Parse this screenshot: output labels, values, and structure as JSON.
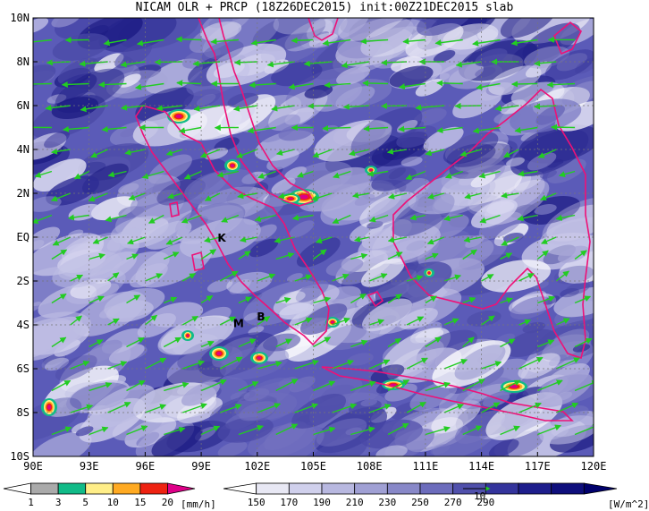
{
  "title": "NICAM OLR + PRCP (18Z26DEC2015) init:00Z21DEC2015 slab",
  "map": {
    "lon_ticks": [
      "90E",
      "93E",
      "96E",
      "99E",
      "102E",
      "105E",
      "108E",
      "111E",
      "114E",
      "117E",
      "120E"
    ],
    "lat_ticks": [
      "10N",
      "8N",
      "6N",
      "4N",
      "2N",
      "EQ",
      "2S",
      "4S",
      "6S",
      "8S",
      "10S"
    ],
    "lon_range": [
      90,
      120
    ],
    "lat_range": [
      -10,
      10
    ],
    "grid": true,
    "station_labels": [
      {
        "text": "K",
        "lon": 100.1,
        "lat": -0.2
      },
      {
        "text": "M",
        "lon": 101.0,
        "lat": -4.1
      },
      {
        "text": "B",
        "lon": 102.2,
        "lat": -3.8
      }
    ],
    "wind_arrows_color": "#22cc22",
    "coastline_color": "#ee1177"
  },
  "precip_bar": {
    "labels": [
      "1",
      "3",
      "5",
      "10",
      "15",
      "20"
    ],
    "unit": "[mm/h]",
    "colors": [
      "#ffffff",
      "#aaaaaa",
      "#11bb88",
      "#ffee88",
      "#ffaa22",
      "#ee2211",
      "#dd0088"
    ]
  },
  "olr_bar": {
    "labels": [
      "150",
      "170",
      "190",
      "210",
      "230",
      "250",
      "270",
      "290"
    ],
    "unit": "[W/m^2]",
    "colors": [
      "#ffffff",
      "#e8e8f4",
      "#d0d0ec",
      "#b8b8e0",
      "#a0a0d4",
      "#8888c8",
      "#6c6cbc",
      "#5050ac",
      "#34349c",
      "#1e1e8c",
      "#0e0e7c",
      "#00006c"
    ]
  },
  "vector_ref": "10"
}
